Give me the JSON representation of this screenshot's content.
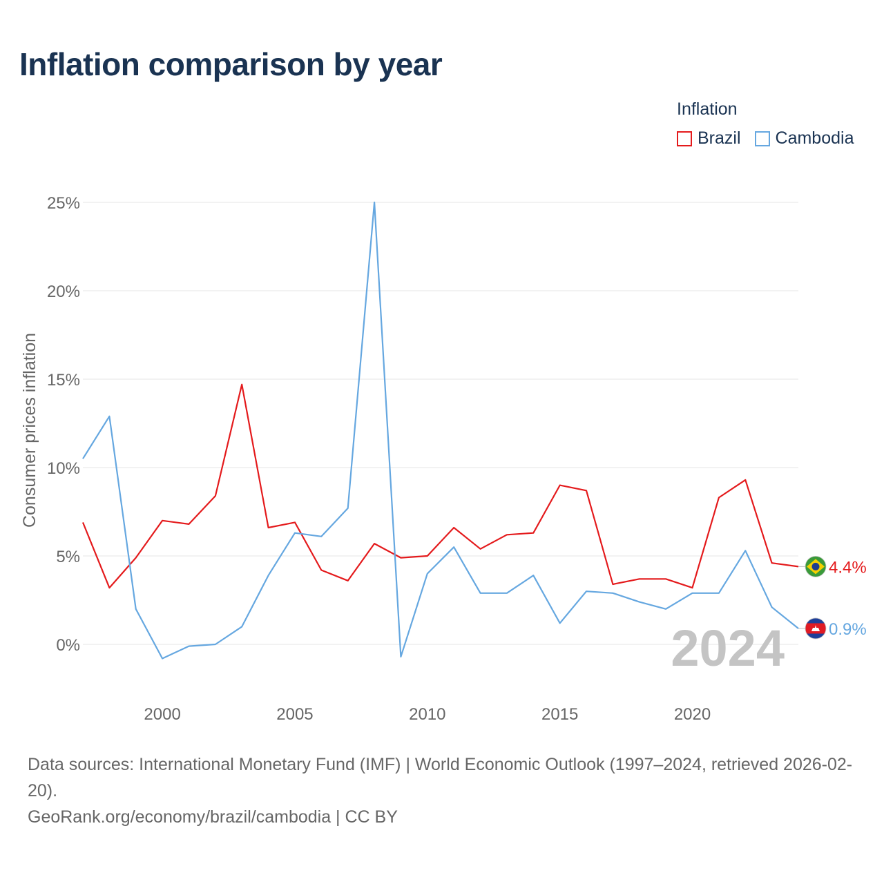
{
  "chart_data": {
    "type": "line",
    "title": "Inflation comparison by year",
    "ylabel": "Consumer prices inflation",
    "xlabel": "",
    "xlim": [
      1997,
      2024
    ],
    "ylim": [
      -3,
      25
    ],
    "y_ticks": [
      0,
      5,
      10,
      15,
      20,
      25
    ],
    "y_tick_labels": [
      "0%",
      "5%",
      "10%",
      "15%",
      "20%",
      "25%"
    ],
    "x_ticks": [
      2000,
      2005,
      2010,
      2015,
      2020
    ],
    "x_tick_labels": [
      "2000",
      "2005",
      "2010",
      "2015",
      "2020"
    ],
    "legend_title": "Inflation",
    "legend_position": "top-right",
    "x": [
      1997,
      1998,
      1999,
      2000,
      2001,
      2002,
      2003,
      2004,
      2005,
      2006,
      2007,
      2008,
      2009,
      2010,
      2011,
      2012,
      2013,
      2014,
      2015,
      2016,
      2017,
      2018,
      2019,
      2020,
      2021,
      2022,
      2023,
      2024
    ],
    "series": [
      {
        "name": "Brazil",
        "color": "#e41a1c",
        "end_label": "4.4%",
        "values": [
          6.9,
          3.2,
          4.9,
          7.0,
          6.8,
          8.4,
          14.7,
          6.6,
          6.9,
          4.2,
          3.6,
          5.7,
          4.9,
          5.0,
          6.6,
          5.4,
          6.2,
          6.3,
          9.0,
          8.7,
          3.4,
          3.7,
          3.7,
          3.2,
          8.3,
          9.3,
          4.6,
          4.4
        ]
      },
      {
        "name": "Cambodia",
        "color": "#65a7e0",
        "end_label": "0.9%",
        "values": [
          10.5,
          12.9,
          2.0,
          -0.8,
          -0.1,
          0.0,
          1.0,
          3.9,
          6.3,
          6.1,
          7.7,
          25.0,
          -0.7,
          4.0,
          5.5,
          2.9,
          2.9,
          3.9,
          1.2,
          3.0,
          2.9,
          2.4,
          2.0,
          2.9,
          2.9,
          5.3,
          2.1,
          0.9
        ]
      }
    ],
    "current_year": "2024"
  },
  "footer": {
    "sources": "Data sources: International Monetary Fund (IMF) | World Economic Outlook (1997–2024, retrieved 2026-02-20).",
    "link": "GeoRank.org/economy/brazil/cambodia | CC BY"
  }
}
